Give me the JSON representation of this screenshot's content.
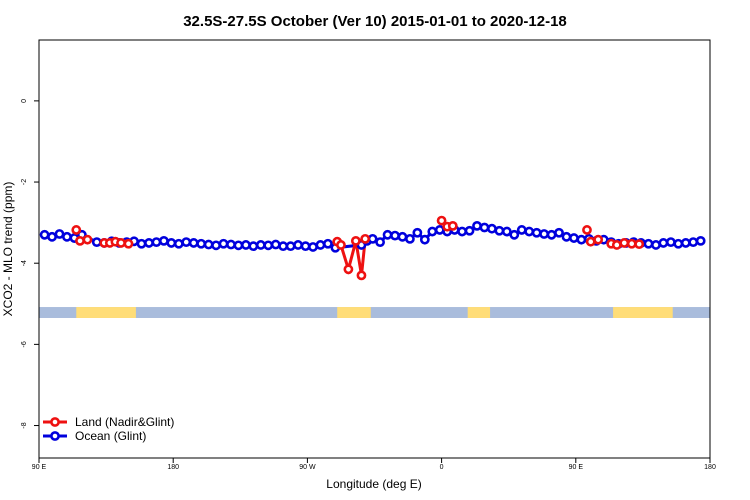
{
  "chart_data": {
    "type": "line",
    "title": "32.5S-27.5S October (Ver 10)   2015-01-01 to 2020-12-18",
    "xlabel": "Longitude (deg E)",
    "ylabel": "XCO2 - MLO trend (ppm)",
    "xlim": [
      90,
      450
    ],
    "ylim": [
      -8.8,
      1.5
    ],
    "x_ticks": [
      {
        "value": 90,
        "label": "90 E"
      },
      {
        "value": 162,
        "label": "180"
      },
      {
        "value": 234,
        "label": "90 W"
      },
      {
        "value": 306,
        "label": "0"
      },
      {
        "value": 378,
        "label": "90 E"
      },
      {
        "value": 450,
        "label": "180"
      }
    ],
    "y_ticks": [
      {
        "value": 0,
        "label": "0"
      },
      {
        "value": -2,
        "label": "-2"
      },
      {
        "value": -4,
        "label": "-4"
      },
      {
        "value": -6,
        "label": "-6"
      },
      {
        "value": -8,
        "label": "-8"
      }
    ],
    "land_ocean_band": {
      "y_top": -5.08,
      "y_bottom": -5.35,
      "ocean_color": "#a9bcdc",
      "land_color": "#ffdd78",
      "land_segments": [
        [
          110,
          142
        ],
        [
          250,
          268
        ],
        [
          320,
          332
        ],
        [
          398,
          430
        ]
      ]
    },
    "legend": {
      "position": "bottom-left",
      "entries": [
        {
          "label": "Land (Nadir&Glint)",
          "color": "#ee1111"
        },
        {
          "label": "Ocean (Glint)",
          "color": "#0000dd"
        }
      ]
    },
    "series": [
      {
        "name": "Land (Nadir&Glint)",
        "color": "#ee1111",
        "segments": [
          [
            [
              110,
              -3.18
            ],
            [
              112,
              -3.45
            ],
            [
              116,
              -3.42
            ]
          ],
          [
            [
              125,
              -3.5
            ],
            [
              128,
              -3.5
            ],
            [
              131,
              -3.47
            ],
            [
              134,
              -3.5
            ],
            [
              138,
              -3.52
            ]
          ],
          [
            [
              250,
              -3.47
            ],
            [
              252,
              -3.55
            ],
            [
              256,
              -4.15
            ],
            [
              260,
              -3.45
            ],
            [
              263,
              -4.3
            ],
            [
              265,
              -3.4
            ]
          ],
          [
            [
              306,
              -2.95
            ],
            [
              309,
              -3.1
            ],
            [
              312,
              -3.08
            ]
          ],
          [
            [
              384,
              -3.18
            ],
            [
              386,
              -3.47
            ],
            [
              390,
              -3.42
            ]
          ],
          [
            [
              397,
              -3.52
            ],
            [
              400,
              -3.55
            ],
            [
              404,
              -3.5
            ],
            [
              408,
              -3.52
            ],
            [
              412,
              -3.53
            ]
          ]
        ]
      },
      {
        "name": "Ocean (Glint)",
        "color": "#0000dd",
        "x": [
          93,
          97,
          101,
          105,
          109,
          113,
          121,
          125,
          129,
          133,
          137,
          141,
          145,
          149,
          153,
          157,
          161,
          165,
          169,
          173,
          177,
          181,
          185,
          189,
          193,
          197,
          201,
          205,
          209,
          213,
          217,
          221,
          225,
          229,
          233,
          237,
          241,
          245,
          249,
          263,
          266,
          269,
          273,
          277,
          281,
          285,
          289,
          293,
          297,
          301,
          305,
          309,
          313,
          317,
          321,
          325,
          329,
          333,
          337,
          341,
          345,
          349,
          353,
          357,
          361,
          365,
          369,
          373,
          377,
          381,
          385,
          389,
          393,
          397,
          401,
          405,
          409,
          413,
          417,
          421,
          425,
          429,
          433,
          437,
          441,
          445
        ],
        "y": [
          -3.3,
          -3.35,
          -3.28,
          -3.35,
          -3.38,
          -3.3,
          -3.48,
          -3.5,
          -3.46,
          -3.5,
          -3.48,
          -3.46,
          -3.52,
          -3.5,
          -3.48,
          -3.45,
          -3.5,
          -3.52,
          -3.48,
          -3.5,
          -3.52,
          -3.54,
          -3.56,
          -3.52,
          -3.54,
          -3.56,
          -3.55,
          -3.58,
          -3.55,
          -3.56,
          -3.54,
          -3.58,
          -3.58,
          -3.55,
          -3.58,
          -3.6,
          -3.55,
          -3.52,
          -3.62,
          -3.55,
          -3.45,
          -3.4,
          -3.48,
          -3.3,
          -3.32,
          -3.35,
          -3.4,
          -3.25,
          -3.42,
          -3.22,
          -3.18,
          -3.22,
          -3.18,
          -3.22,
          -3.2,
          -3.08,
          -3.12,
          -3.15,
          -3.2,
          -3.22,
          -3.3,
          -3.18,
          -3.22,
          -3.25,
          -3.28,
          -3.3,
          -3.25,
          -3.35,
          -3.38,
          -3.42,
          -3.4,
          -3.45,
          -3.42,
          -3.48,
          -3.52,
          -3.5,
          -3.48,
          -3.5,
          -3.52,
          -3.55,
          -3.5,
          -3.48,
          -3.52,
          -3.5,
          -3.48,
          -3.45
        ]
      }
    ]
  }
}
